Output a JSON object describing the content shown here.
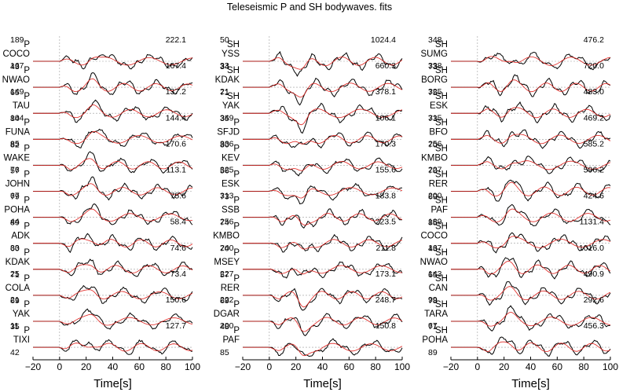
{
  "chart_data": {
    "type": "line",
    "title": "Teleseismic P and SH bodywaves. fits",
    "x_ticks": [
      -20,
      0,
      20,
      40,
      60,
      80,
      100
    ],
    "xlim": [
      -20,
      100
    ],
    "xlabel": "Time[s]",
    "series_names": [
      "observed",
      "synthetic"
    ],
    "colors": {
      "observed": "#000000",
      "synthetic": "#e0201c",
      "zero_line": "#9a9a9a"
    },
    "panels": [
      {
        "traces": [
          {
            "phase": "P",
            "station": "COCO",
            "azimuth": "189",
            "distance": "43",
            "amplitude": "222.1"
          },
          {
            "phase": "P",
            "station": "NWAO",
            "azimuth": "167",
            "distance": "65",
            "amplitude": "167.4"
          },
          {
            "phase": "P",
            "station": "TAU",
            "azimuth": "149",
            "distance": "84",
            "amplitude": "137.2"
          },
          {
            "phase": "P",
            "station": "FUNA",
            "azimuth": "104",
            "distance": "82",
            "amplitude": "144.4"
          },
          {
            "phase": "P",
            "station": "WAKE",
            "azimuth": "85",
            "distance": "57",
            "amplitude": "170.6"
          },
          {
            "phase": "P",
            "station": "JOHN",
            "azimuth": "76",
            "distance": "79",
            "amplitude": "113.1"
          },
          {
            "phase": "P",
            "station": "POHA",
            "azimuth": "67",
            "distance": "89",
            "amplitude": "75.6"
          },
          {
            "phase": "P",
            "station": "ADK",
            "azimuth": "44",
            "distance": "60",
            "amplitude": "58.4"
          },
          {
            "phase": "P",
            "station": "KDAK",
            "azimuth": "33",
            "distance": "71",
            "amplitude": "74.6"
          },
          {
            "phase": "P",
            "station": "COLA",
            "azimuth": "25",
            "distance": "69",
            "amplitude": "73.4"
          },
          {
            "phase": "P",
            "station": "YAK",
            "azimuth": "21",
            "distance": "35",
            "amplitude": "150.6"
          },
          {
            "phase": "P",
            "station": "TIXI",
            "azimuth": "11",
            "distance": "42",
            "amplitude": "127.7"
          }
        ]
      },
      {
        "traces": [
          {
            "phase": "SH",
            "station": "YSS",
            "azimuth": "50",
            "distance": "34",
            "amplitude": "1024.4"
          },
          {
            "phase": "SH",
            "station": "KDAK",
            "azimuth": "33",
            "distance": "71",
            "amplitude": "660.3"
          },
          {
            "phase": "SH",
            "station": "YAK",
            "azimuth": "21",
            "distance": "35",
            "amplitude": "378.1"
          },
          {
            "phase": "P",
            "station": "SFJD",
            "azimuth": "349",
            "distance": "80",
            "amplitude": "106.1"
          },
          {
            "phase": "P",
            "station": "KEV",
            "azimuth": "336",
            "distance": "56",
            "amplitude": "170.3"
          },
          {
            "phase": "P",
            "station": "ESK",
            "azimuth": "325",
            "distance": "73",
            "amplitude": "155.6"
          },
          {
            "phase": "P",
            "station": "SSB",
            "azimuth": "313",
            "distance": "74",
            "amplitude": "183.8"
          },
          {
            "phase": "P",
            "station": "KMBO",
            "azimuth": "256",
            "distance": "70",
            "amplitude": "223.5"
          },
          {
            "phase": "P",
            "station": "MSEY",
            "azimuth": "240",
            "distance": "57",
            "amplitude": "211.8"
          },
          {
            "phase": "P",
            "station": "RER",
            "azimuth": "227",
            "distance": "69",
            "amplitude": "173.1"
          },
          {
            "phase": "P",
            "station": "DGAR",
            "azimuth": "222",
            "distance": "48",
            "amplitude": "248.7"
          },
          {
            "phase": "P",
            "station": "PAF",
            "azimuth": "200",
            "distance": "85",
            "amplitude": "150.8"
          }
        ]
      },
      {
        "traces": [
          {
            "phase": "SH",
            "station": "SUMG",
            "azimuth": "348",
            "distance": "73",
            "amplitude": "476.2"
          },
          {
            "phase": "SH",
            "station": "BORG",
            "azimuth": "338",
            "distance": "75",
            "amplitude": "720.0"
          },
          {
            "phase": "SH",
            "station": "ESK",
            "azimuth": "325",
            "distance": "73",
            "amplitude": "483.0"
          },
          {
            "phase": "SH",
            "station": "BFO",
            "azimuth": "315",
            "distance": "70",
            "amplitude": "469.2"
          },
          {
            "phase": "SH",
            "station": "KMBO",
            "azimuth": "256",
            "distance": "70",
            "amplitude": "585.2"
          },
          {
            "phase": "SH",
            "station": "RER",
            "azimuth": "227",
            "distance": "69",
            "amplitude": "596.2"
          },
          {
            "phase": "SH",
            "station": "PAF",
            "azimuth": "200",
            "distance": "85",
            "amplitude": "424.6"
          },
          {
            "phase": "SH",
            "station": "COCO",
            "azimuth": "189",
            "distance": "43",
            "amplitude": "1131.4"
          },
          {
            "phase": "SH",
            "station": "NWAO",
            "azimuth": "167",
            "distance": "65",
            "amplitude": "1016.0"
          },
          {
            "phase": "SH",
            "station": "CAN",
            "azimuth": "143",
            "distance": "78",
            "amplitude": "490.9"
          },
          {
            "phase": "SH",
            "station": "TARA",
            "azimuth": "99",
            "distance": "71",
            "amplitude": "292.6"
          },
          {
            "phase": "SH",
            "station": "POHA",
            "azimuth": "67",
            "distance": "89",
            "amplitude": "456.3"
          }
        ]
      }
    ]
  }
}
